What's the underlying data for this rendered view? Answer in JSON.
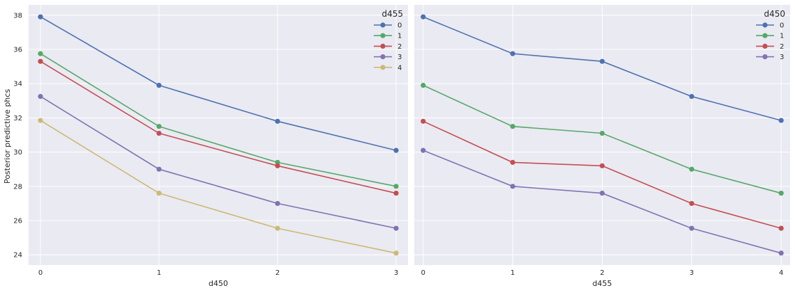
{
  "figure": {
    "ylabel": "Posterior predictive phcs"
  },
  "chart_data": [
    {
      "type": "line",
      "xlabel": "d450",
      "ylabel": "Posterior predictive phcs",
      "x": [
        0,
        1,
        2,
        3
      ],
      "xlim": [
        -0.1,
        3.1
      ],
      "ylim": [
        23.4,
        38.6
      ],
      "yticks": [
        24,
        26,
        28,
        30,
        32,
        34,
        36,
        38
      ],
      "grid": true,
      "legend": {
        "title": "d455",
        "placement": "top-right"
      },
      "series": [
        {
          "name": "0",
          "color": "#4c72b0",
          "values": [
            37.9,
            33.9,
            31.8,
            30.1
          ]
        },
        {
          "name": "1",
          "color": "#55a868",
          "values": [
            35.75,
            31.5,
            29.4,
            28.0
          ]
        },
        {
          "name": "2",
          "color": "#c44e52",
          "values": [
            35.3,
            31.1,
            29.2,
            27.6
          ]
        },
        {
          "name": "3",
          "color": "#8172b2",
          "values": [
            33.25,
            29.0,
            27.0,
            25.55
          ]
        },
        {
          "name": "4",
          "color": "#ccb974",
          "values": [
            31.85,
            27.6,
            25.55,
            24.1
          ]
        }
      ]
    },
    {
      "type": "line",
      "xlabel": "d455",
      "ylabel": "",
      "x": [
        0,
        1,
        2,
        3,
        4
      ],
      "xlim": [
        -0.1,
        4.1
      ],
      "ylim": [
        23.4,
        38.6
      ],
      "yticks": [
        24,
        26,
        28,
        30,
        32,
        34,
        36,
        38
      ],
      "grid": true,
      "legend": {
        "title": "d450",
        "placement": "top-right"
      },
      "series": [
        {
          "name": "0",
          "color": "#4c72b0",
          "values": [
            37.9,
            35.75,
            35.3,
            33.25,
            31.85
          ]
        },
        {
          "name": "1",
          "color": "#55a868",
          "values": [
            33.9,
            31.5,
            31.1,
            29.0,
            27.6
          ]
        },
        {
          "name": "2",
          "color": "#c44e52",
          "values": [
            31.8,
            29.4,
            29.2,
            27.0,
            25.55
          ]
        },
        {
          "name": "3",
          "color": "#8172b2",
          "values": [
            30.1,
            28.0,
            27.6,
            25.55,
            24.1
          ]
        }
      ]
    }
  ]
}
